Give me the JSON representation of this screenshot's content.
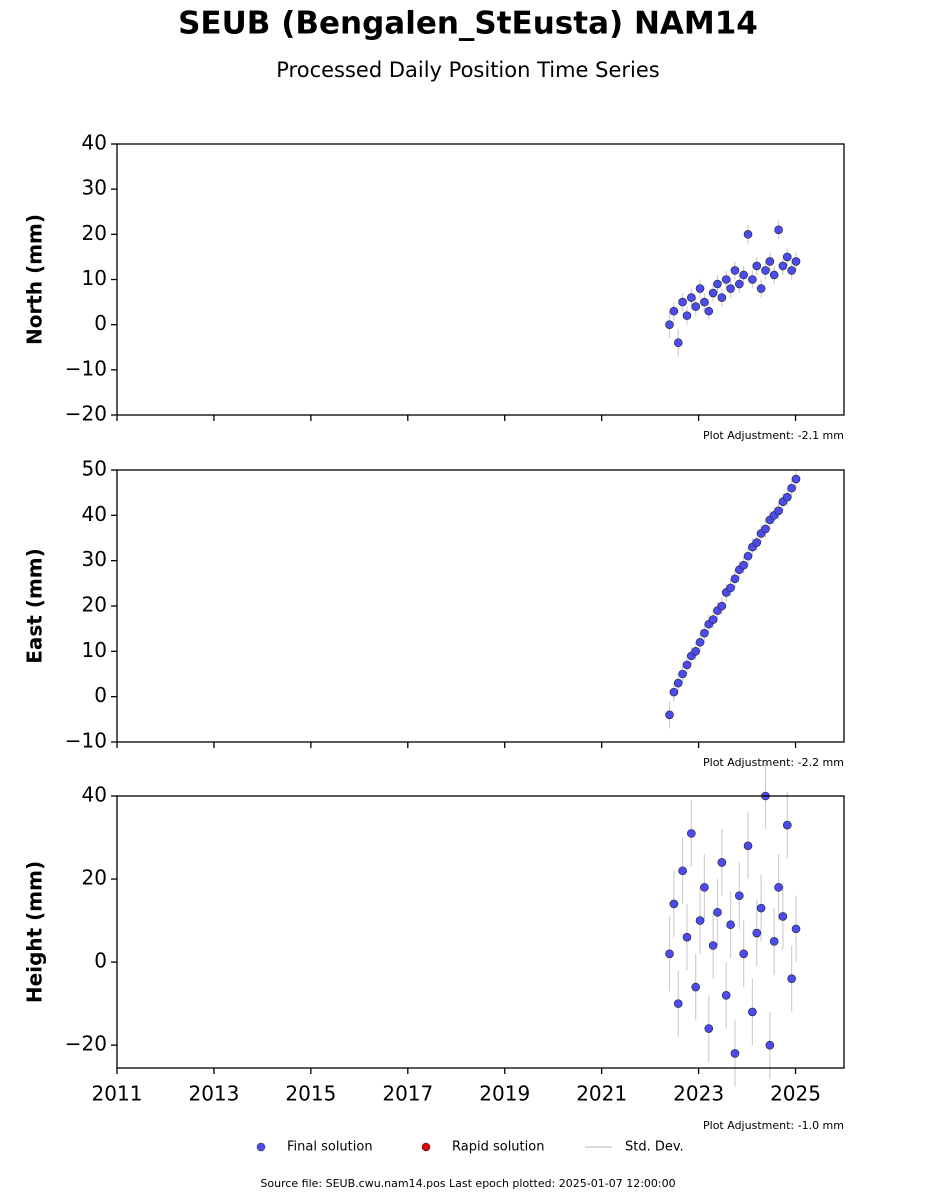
{
  "title": "SEUB (Bengalen_StEusta) NAM14",
  "subtitle": "Processed Daily Position Time Series",
  "legend": [
    {
      "name": "Final solution",
      "color": "#4b4bf0",
      "marker": "circle"
    },
    {
      "name": "Rapid solution",
      "color": "#e00000",
      "marker": "circle"
    },
    {
      "name": "Std. Dev.",
      "color": "#cfcfcf",
      "marker": "line"
    }
  ],
  "source": "Source file: SEUB.cwu.nam14.pos  Last epoch plotted: 2025-01-07 12:00:00",
  "chart_data": [
    {
      "type": "scatter",
      "y_label": "North (mm)",
      "annotation": "Plot Adjustment: -2.1 mm",
      "xlim": [
        2011,
        2026
      ],
      "xticks": [
        2011,
        2013,
        2015,
        2017,
        2019,
        2021,
        2023,
        2025
      ],
      "show_xtick_labels": false,
      "ylim": [
        -20,
        40
      ],
      "yticks": [
        {
          "value": -20,
          "label": "−20"
        },
        {
          "value": -10,
          "label": "−10"
        },
        0,
        10,
        20,
        30,
        40
      ],
      "x": [
        2022.4,
        2022.49,
        2022.58,
        2022.67,
        2022.76,
        2022.85,
        2022.94,
        2023.03,
        2023.12,
        2023.21,
        2023.3,
        2023.39,
        2023.48,
        2023.57,
        2023.66,
        2023.75,
        2023.84,
        2023.93,
        2024.02,
        2024.11,
        2024.2,
        2024.29,
        2024.38,
        2024.47,
        2024.56,
        2024.65,
        2024.74,
        2024.83,
        2024.92,
        2025.01
      ],
      "series": [
        {
          "name": "Final solution",
          "color": "#4b4bf0",
          "values": [
            0,
            3,
            -4,
            5,
            2,
            6,
            4,
            8,
            5,
            3,
            7,
            9,
            6,
            10,
            8,
            12,
            9,
            11,
            20,
            10,
            13,
            8,
            12,
            14,
            11,
            21,
            13,
            15,
            12,
            14
          ],
          "errors": [
            3,
            2,
            3,
            2,
            2,
            2,
            2,
            2,
            2,
            2,
            2,
            2,
            2,
            2,
            2,
            2,
            2,
            2,
            2,
            2,
            2,
            2,
            2,
            2,
            2,
            2,
            2,
            2,
            2,
            2
          ]
        }
      ]
    },
    {
      "type": "scatter",
      "y_label": "East (mm)",
      "annotation": "Plot Adjustment: -2.2 mm",
      "xlim": [
        2011,
        2026
      ],
      "xticks": [
        2011,
        2013,
        2015,
        2017,
        2019,
        2021,
        2023,
        2025
      ],
      "show_xtick_labels": false,
      "ylim": [
        -10,
        50
      ],
      "yticks": [
        {
          "value": -10,
          "label": "−10"
        },
        0,
        10,
        20,
        30,
        40,
        50
      ],
      "x": [
        2022.4,
        2022.49,
        2022.58,
        2022.67,
        2022.76,
        2022.85,
        2022.94,
        2023.03,
        2023.12,
        2023.21,
        2023.3,
        2023.39,
        2023.48,
        2023.57,
        2023.66,
        2023.75,
        2023.84,
        2023.93,
        2024.02,
        2024.11,
        2024.2,
        2024.29,
        2024.38,
        2024.47,
        2024.56,
        2024.65,
        2024.74,
        2024.83,
        2024.92,
        2025.01
      ],
      "series": [
        {
          "name": "Final solution",
          "color": "#4b4bf0",
          "values": [
            -4,
            1,
            3,
            5,
            7,
            9,
            10,
            12,
            14,
            16,
            17,
            19,
            20,
            23,
            24,
            26,
            28,
            29,
            31,
            33,
            34,
            36,
            37,
            39,
            40,
            41,
            43,
            44,
            46,
            48
          ],
          "errors": [
            3,
            2,
            2,
            2,
            2,
            2,
            2,
            2,
            2,
            2,
            2,
            2,
            2,
            2,
            2,
            2,
            2,
            2,
            2,
            2,
            2,
            2,
            2,
            2,
            2,
            2,
            2,
            2,
            2,
            2
          ]
        }
      ]
    },
    {
      "type": "scatter",
      "y_label": "Height (mm)",
      "annotation": "Plot Adjustment: -1.0 mm",
      "xlim": [
        2011,
        2026
      ],
      "xticks": [
        2011,
        2013,
        2015,
        2017,
        2019,
        2021,
        2023,
        2025
      ],
      "show_xtick_labels": true,
      "ylim": [
        -25.5,
        40
      ],
      "yticks": [
        {
          "value": -20,
          "label": "−20"
        },
        0,
        20,
        40
      ],
      "x": [
        2022.4,
        2022.49,
        2022.58,
        2022.67,
        2022.76,
        2022.85,
        2022.94,
        2023.03,
        2023.12,
        2023.21,
        2023.3,
        2023.39,
        2023.48,
        2023.57,
        2023.66,
        2023.75,
        2023.84,
        2023.93,
        2024.02,
        2024.11,
        2024.2,
        2024.29,
        2024.38,
        2024.47,
        2024.56,
        2024.65,
        2024.74,
        2024.83,
        2024.92,
        2025.01
      ],
      "series": [
        {
          "name": "Final solution",
          "color": "#4b4bf0",
          "values": [
            2,
            14,
            -10,
            22,
            6,
            31,
            -6,
            10,
            18,
            -16,
            4,
            12,
            24,
            -8,
            9,
            -22,
            16,
            2,
            28,
            -12,
            7,
            13,
            40,
            -20,
            5,
            18,
            11,
            33,
            -4,
            8
          ],
          "errors": [
            9,
            8,
            8,
            8,
            8,
            8,
            8,
            8,
            8,
            8,
            8,
            8,
            8,
            8,
            8,
            8,
            8,
            8,
            8,
            8,
            8,
            8,
            8,
            8,
            8,
            8,
            8,
            8,
            8,
            8
          ]
        }
      ]
    }
  ]
}
